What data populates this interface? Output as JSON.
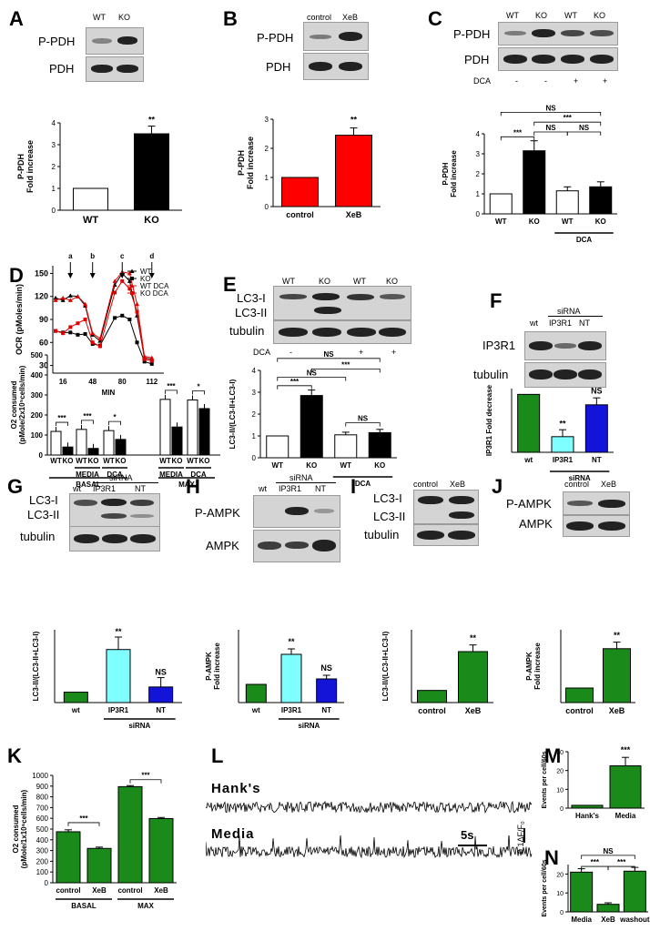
{
  "colors": {
    "green": "#1a8a1a",
    "red": "#ff0000",
    "cyan": "#7fffff",
    "blue": "#1414d8",
    "black": "#000000",
    "white": "#ffffff"
  },
  "A": {
    "letter": "A",
    "lanes": [
      "WT",
      "KO"
    ],
    "rows": [
      "P-PDH",
      "PDH"
    ],
    "chart": {
      "type": "bar",
      "categories": [
        "WT",
        "KO"
      ],
      "values": [
        1,
        3.5
      ],
      "ylim": [
        0,
        4
      ],
      "yticks": [
        "0",
        "1",
        "2",
        "3",
        "4"
      ],
      "ylabel": "P-PDH\nFold increase",
      "sig": "**"
    }
  },
  "B": {
    "letter": "B",
    "lanes": [
      "control",
      "XeB"
    ],
    "rows": [
      "P-PDH",
      "PDH"
    ],
    "chart": {
      "type": "bar",
      "categories": [
        "control",
        "XeB"
      ],
      "values": [
        1,
        2.45
      ],
      "ylim": [
        0,
        3
      ],
      "yticks": [
        "0",
        "1",
        "2",
        "3"
      ],
      "ylabel": "P-PDH\nFold increase",
      "sig": "**"
    }
  },
  "C": {
    "letter": "C",
    "lanes": [
      "WT",
      "KO",
      "WT",
      "KO"
    ],
    "rows": [
      "P-PDH",
      "PDH"
    ],
    "dca_label": "DCA",
    "dca": [
      "-",
      "-",
      "+",
      "+"
    ],
    "chart": {
      "type": "bar",
      "categories": [
        "WT",
        "KO",
        "WT",
        "KO"
      ],
      "values": [
        1,
        3.15,
        1.15,
        1.35
      ],
      "ylim": [
        0,
        4
      ],
      "yticks": [
        "0",
        "1",
        "2",
        "3",
        "4"
      ],
      "ylabel": "P-PDH\nFold increase",
      "group": "DCA",
      "sig": [
        "***",
        "NS",
        "NS",
        "***",
        "NS"
      ]
    }
  },
  "D": {
    "letter": "D",
    "line": {
      "type": "line",
      "ylabel": "OCR (pMoles/min)",
      "xlabel": "MIN",
      "yticks": [
        "30",
        "60",
        "90",
        "120",
        "150"
      ],
      "xticks": [
        "16",
        "48",
        "80",
        "112"
      ],
      "injections": [
        "a",
        "b",
        "c",
        "d"
      ],
      "series": [
        {
          "name": "WT",
          "values": [
            118,
            115,
            121,
            120,
            108,
            70,
            62,
            135,
            150,
            140,
            95,
            40,
            38
          ]
        },
        {
          "name": "KO",
          "values": [
            75,
            73,
            73,
            70,
            71,
            58,
            56,
            92,
            95,
            90,
            60,
            35,
            32
          ]
        },
        {
          "name": "WT DCA",
          "values": [
            115,
            118,
            115,
            120,
            110,
            72,
            65,
            140,
            152,
            150,
            110,
            42,
            40
          ]
        },
        {
          "name": "KO DCA",
          "values": [
            75,
            72,
            80,
            85,
            90,
            60,
            55,
            125,
            140,
            130,
            100,
            38,
            36
          ]
        }
      ]
    },
    "bar": {
      "type": "bar",
      "ylabel": "O2 consumed\n(pMole/2x10⁵cells/min)",
      "yticks": [
        "0",
        "100",
        "200",
        "300",
        "400",
        "500"
      ],
      "groups": [
        "MEDIA",
        "DCA",
        "MEDIA",
        "DCA"
      ],
      "sections": [
        "BASAL",
        "MAX"
      ],
      "cat": [
        "WT",
        "KO"
      ],
      "values": [
        [
          118,
          40
        ],
        [
          128,
          33
        ],
        [
          122,
          78
        ],
        [
          278,
          140
        ],
        [
          275,
          232
        ]
      ],
      "sig": [
        "***",
        "***",
        "*",
        "***",
        "*"
      ]
    }
  },
  "E": {
    "letter": "E",
    "lanes": [
      "WT",
      "KO",
      "WT",
      "KO"
    ],
    "rows": [
      "LC3-I",
      "LC3-II",
      "tubulin"
    ],
    "dca_label": "DCA",
    "dca": [
      "-",
      "-",
      "+",
      "+"
    ],
    "chart": {
      "type": "bar",
      "categories": [
        "WT",
        "KO",
        "WT",
        "KO"
      ],
      "values": [
        1,
        2.85,
        1.05,
        1.15
      ],
      "ylim": [
        0,
        4
      ],
      "yticks": [
        "0",
        "1",
        "2",
        "3",
        "4"
      ],
      "ylabel": "LC3-II/(LC3-II+LC3-I)",
      "group": "DCA",
      "sig": [
        "***",
        "NS",
        "NS",
        "***",
        "NS"
      ]
    }
  },
  "F": {
    "letter": "F",
    "sirna": "siRNA",
    "lanes": [
      "wt",
      "IP3R1",
      "NT"
    ],
    "rows": [
      "IP3R1",
      "tubulin"
    ],
    "chart": {
      "type": "bar",
      "categories": [
        "wt",
        "IP3R1",
        "NT"
      ],
      "values": [
        1,
        0.27,
        0.82
      ],
      "ylim": [
        0,
        1.1
      ],
      "ylabel": "IP3R1 Fold decrease",
      "group": "siRNA",
      "sig": [
        "**",
        "NS"
      ]
    }
  },
  "G": {
    "letter": "G",
    "sirna": "siRNA",
    "lanes": [
      "wt",
      "IP3R1",
      "NT"
    ],
    "rows": [
      "LC3-I",
      "LC3-II",
      "tubulin"
    ],
    "chart": {
      "type": "bar",
      "categories": [
        "wt",
        "IP3R1",
        "NT"
      ],
      "values": [
        1,
        5.1,
        1.5
      ],
      "ylim": [
        0,
        7
      ],
      "ylabel": "LC3-II/(LC3-II+LC3-I)",
      "group": "siRNA",
      "sig": [
        "**",
        "NS"
      ]
    }
  },
  "H": {
    "letter": "H",
    "sirna": "siRNA",
    "lanes": [
      "wt",
      "IP3R1",
      "NT"
    ],
    "rows": [
      "P-AMPK",
      "AMPK"
    ],
    "chart": {
      "type": "bar",
      "categories": [
        "wt",
        "IP3R1",
        "NT"
      ],
      "values": [
        1,
        2.65,
        1.3
      ],
      "ylim": [
        0,
        4
      ],
      "ylabel": "P-AMPK\nFold increase",
      "group": "siRNA",
      "sig": [
        "**",
        "NS"
      ]
    }
  },
  "I": {
    "letter": "I",
    "lanes": [
      "control",
      "XeB"
    ],
    "rows": [
      "LC3-I",
      "LC3-II",
      "tubulin"
    ],
    "chart": {
      "type": "bar",
      "categories": [
        "control",
        "XeB"
      ],
      "values": [
        1,
        4.2
      ],
      "ylim": [
        0,
        6
      ],
      "ylabel": "LC3-II/(LC3-II+LC3-I)",
      "sig": "**"
    }
  },
  "J": {
    "letter": "J",
    "lanes": [
      "control",
      "XeB"
    ],
    "rows": [
      "P-AMPK",
      "AMPK"
    ],
    "chart": {
      "type": "bar",
      "categories": [
        "control",
        "XeB"
      ],
      "values": [
        1,
        3.7
      ],
      "ylim": [
        0,
        5
      ],
      "ylabel": "P-AMPK\nFold increase",
      "sig": "**"
    }
  },
  "K": {
    "letter": "K",
    "chart": {
      "type": "bar",
      "categories": [
        "control",
        "XeB",
        "control",
        "XeB"
      ],
      "values": [
        475,
        320,
        895,
        598
      ],
      "ylim": [
        0,
        1000
      ],
      "yticks": [
        "0",
        "100",
        "200",
        "300",
        "400",
        "500",
        "600",
        "700",
        "800",
        "900",
        "1000"
      ],
      "ylabel": "O2 consumed\n(pMole/1x10⁶cells/min)",
      "groups": [
        "BASAL",
        "MAX"
      ],
      "sig": [
        "***",
        "***"
      ]
    }
  },
  "L": {
    "letter": "L",
    "trace1": "Hank's",
    "trace2": "Media",
    "scale_time": "5s",
    "scale_amp": "0.1ΔF/F₀"
  },
  "M": {
    "letter": "M",
    "chart": {
      "type": "bar",
      "categories": [
        "Hank's",
        "Media"
      ],
      "values": [
        1.5,
        22.5
      ],
      "ylim": [
        0,
        30
      ],
      "yticks": [
        "0",
        "10",
        "20",
        "30"
      ],
      "ylabel": "Events per cell/60s",
      "sig": "***"
    }
  },
  "N": {
    "letter": "N",
    "chart": {
      "type": "bar",
      "categories": [
        "Media",
        "XeB",
        "washout"
      ],
      "values": [
        21,
        4,
        21.5
      ],
      "ylim": [
        0,
        25
      ],
      "yticks": [
        "0",
        "10",
        "20"
      ],
      "ylabel": "Events per cell/60s",
      "sig": [
        "NS",
        "***",
        "***"
      ]
    }
  }
}
